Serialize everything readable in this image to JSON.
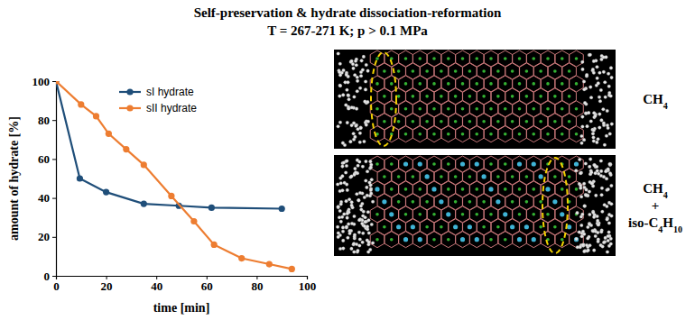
{
  "chart_data": {
    "type": "line",
    "title": "Self-preservation & hydrate dissociation-reformation",
    "subtitle": "T = 267-271 K; p > 0.1 MPa",
    "x_label": "time [min]",
    "y_label": "amount of hydrate [%]",
    "series": [
      {
        "name": "sI hydrate",
        "color": "#1f4e79",
        "marker": "circle",
        "x": [
          0,
          9.5,
          20,
          35,
          49,
          62,
          90
        ],
        "values": [
          100,
          50,
          43,
          37,
          36,
          35,
          34.5
        ]
      },
      {
        "name": "sII hydrate",
        "color": "#ed7d31",
        "marker": "circle",
        "x": [
          0,
          10,
          16,
          21,
          28,
          35,
          46,
          55,
          63,
          74,
          85,
          94
        ],
        "values": [
          100,
          88,
          82,
          73,
          65,
          57,
          41,
          28,
          16,
          9,
          6,
          3.5
        ]
      }
    ],
    "xlim": [
      0,
      100
    ],
    "xticks": [
      0,
      20,
      40,
      60,
      80,
      100
    ],
    "ylim": [
      0,
      100
    ],
    "yticks": [
      0,
      20,
      40,
      60,
      80,
      100
    ],
    "legend": "upper center",
    "grid": false
  },
  "panels": [
    {
      "label": [
        "CH4"
      ]
    },
    {
      "label": [
        "CH4",
        "+",
        "iso-C4H10"
      ]
    }
  ]
}
